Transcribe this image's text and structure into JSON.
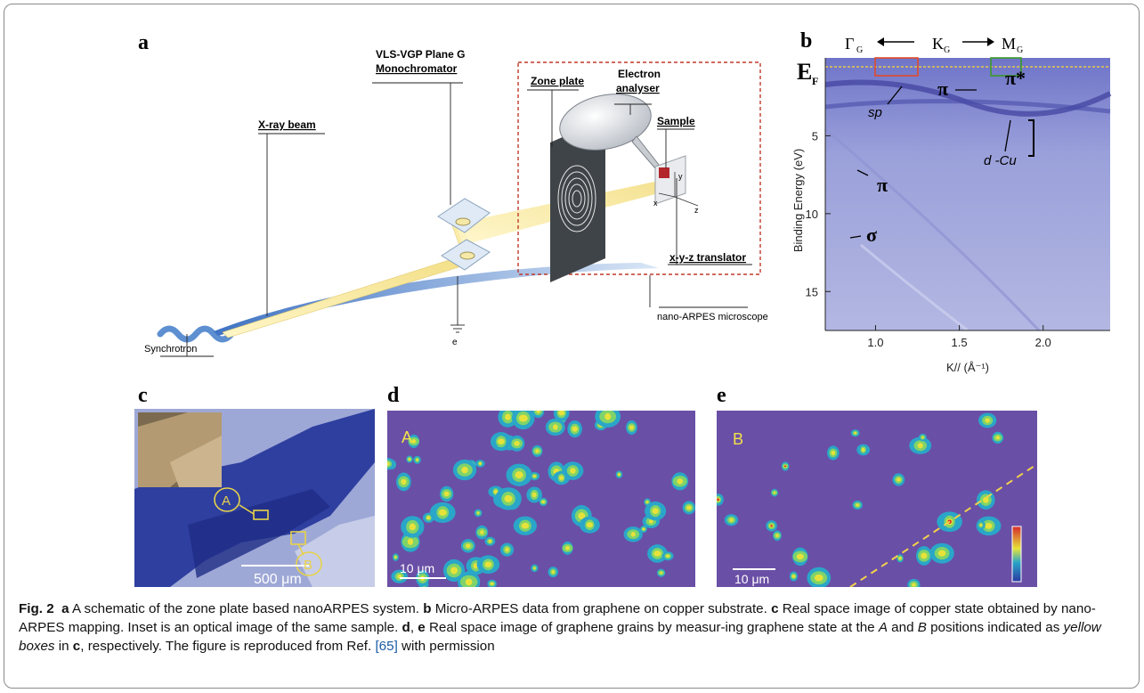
{
  "panels": {
    "a": {
      "letter": "a",
      "labels": {
        "monochromator_line1": "VLS-VGP Plane G",
        "monochromator_line2": "Monochromator",
        "zone_plate": "Zone plate",
        "analyser_line1": "Electron",
        "analyser_line2": "analyser",
        "xray_beam": "X-ray beam",
        "sample": "Sample",
        "translator": "x-y-z translator",
        "synchrotron": "Synchrotron",
        "microscope": "nano-ARPES microscope",
        "electron": "e",
        "axis_x": "x",
        "axis_y": "y",
        "axis_z": "z"
      }
    },
    "b": {
      "letter": "b",
      "top_labels": {
        "gamma": "Γ",
        "k": "K",
        "m": "M",
        "subscript": "G"
      },
      "ef": {
        "main": "E",
        "sub": "F"
      },
      "annotations": {
        "sp": "sp",
        "pi1": "π",
        "pi_star": "π*",
        "dcu": "d -Cu",
        "pi2": "π",
        "sigma": "σ"
      },
      "accent_colors": {
        "red_box": "#e24a2a",
        "green_box": "#3a9a2a",
        "fermi_line": "#e8c84a"
      },
      "chart_data": {
        "type": "heatmap",
        "xlabel": "K// (Å⁻¹)",
        "ylabel": "Binding Energy (eV)",
        "x_ticks": [
          1.0,
          1.5,
          2.0
        ],
        "x_tick_labels": [
          "1.0",
          "1.5",
          "2.0"
        ],
        "y_ticks": [
          5,
          10,
          15
        ],
        "y_tick_labels": [
          "5",
          "10",
          "15"
        ],
        "colormap_hint": "blue-white"
      }
    },
    "c": {
      "letter": "c",
      "marker_a": "A",
      "marker_b": "B",
      "scale": "500 μm"
    },
    "d": {
      "letter": "d",
      "tag": "A",
      "scale": "10 μm"
    },
    "e": {
      "letter": "e",
      "tag": "B",
      "scale": "10 μm"
    }
  },
  "caption": {
    "fig_label": "Fig. 2",
    "parts": [
      {
        "letter": "a",
        "text": " A schematic of the zone plate based nanoARPES system. "
      },
      {
        "letter": "b",
        "text": " Micro-ARPES data from graphene on copper substrate. "
      },
      {
        "letter": "c",
        "text": " Real space image of copper state obtained by nano-ARPES mapping. Inset is an optical image of the same sample. "
      },
      {
        "letter": "d",
        "text": ", "
      },
      {
        "letter": "e",
        "text": " Real space image of graphene grains by measur-ing graphene state at the "
      }
    ],
    "pos_a": "A",
    "and_word": " and ",
    "pos_b": "B",
    "positions_text": " positions indicated as ",
    "yellow_boxes": "yellow boxes",
    "in_text": " in ",
    "c_ref": "c",
    "respectively": ", respectively. The figure is reproduced from Ref. ",
    "ref_open": "[",
    "ref_num": "65",
    "ref_close": "]",
    "permission": " with permission"
  }
}
